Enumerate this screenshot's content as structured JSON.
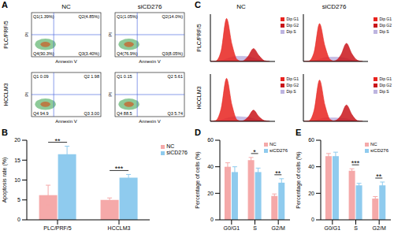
{
  "chart_data": [
    {
      "panel": "A",
      "type": "flow",
      "columns": [
        "NC",
        "siCD276"
      ],
      "rows": [
        "PLC/PRF/5",
        "HCCLM3"
      ],
      "x_label": "Annexin V",
      "y_label": "PI",
      "color": "#2f9e44",
      "quadrants": [
        [
          [
            "Q1(1.39%)",
            "Q2(4.85%)",
            "Q4(90.3%)",
            "Q3(3.40%)"
          ],
          [
            "Q1(1.05%)",
            "Q2(14.0%)",
            "Q4(76.9%)",
            "Q3(8.05%)"
          ]
        ],
        [
          [
            "Q1 0.09",
            "Q2 1.98",
            "Q4 94.9",
            "Q3 3.00"
          ],
          [
            "Q1 0.15",
            "Q2 5.61",
            "Q4 88.5",
            "Q3 5.74"
          ]
        ]
      ]
    },
    {
      "panel": "B",
      "type": "bar",
      "ylabel": "Apoptosis rate (%)",
      "categories": [
        "PLC/PRF/5",
        "HCCLM3"
      ],
      "series": [
        {
          "name": "NC",
          "color": "#f5a9a9",
          "values": [
            6.2,
            5.0
          ],
          "errors": [
            2.5,
            0.5
          ]
        },
        {
          "name": "siCD276",
          "color": "#8fcbee",
          "values": [
            16.5,
            10.6
          ],
          "errors": [
            2.0,
            0.8
          ]
        }
      ],
      "significance": [
        "**",
        "***"
      ],
      "ylim": [
        0,
        20
      ],
      "yticks": [
        0,
        5,
        10,
        15,
        20
      ],
      "legend": "right"
    },
    {
      "panel": "C",
      "type": "area",
      "columns": [
        "NC",
        "siCD276"
      ],
      "rows": [
        "PLC/PRF/5",
        "HCCLM3"
      ],
      "x": [
        0,
        10,
        20,
        30,
        40,
        50,
        60,
        70,
        80,
        90,
        100,
        110
      ],
      "xlim": [
        0,
        120
      ],
      "ylim": [
        0,
        110
      ],
      "tick_labels": false,
      "legend": "right",
      "plots": [
        [
          [
            {
              "name": "Dip G1",
              "color": "#e8231f",
              "values": [
                0,
                1,
                25,
                100,
                40,
                4,
                0,
                0,
                0,
                0,
                0,
                0
              ]
            },
            {
              "name": "Dip G2",
              "color": "#c9151b",
              "values": [
                0,
                0,
                0,
                0,
                0,
                0,
                1,
                12,
                30,
                14,
                2,
                0
              ]
            },
            {
              "name": "Dip S",
              "color": "#bdb4e0",
              "values": [
                0,
                0,
                2,
                6,
                10,
                12,
                12,
                11,
                8,
                4,
                1,
                0
              ]
            }
          ],
          [
            {
              "name": "Dip G1",
              "color": "#e8231f",
              "values": [
                0,
                1,
                22,
                88,
                36,
                4,
                0,
                0,
                0,
                0,
                0,
                0
              ]
            },
            {
              "name": "Dip G2",
              "color": "#c9151b",
              "values": [
                0,
                0,
                0,
                0,
                0,
                0,
                2,
                16,
                42,
                18,
                3,
                0
              ]
            },
            {
              "name": "Dip S",
              "color": "#bdb4e0",
              "values": [
                0,
                0,
                2,
                5,
                9,
                10,
                10,
                9,
                7,
                3,
                1,
                0
              ]
            }
          ]
        ],
        [
          [
            {
              "name": "Dip G1",
              "color": "#e8231f",
              "values": [
                0,
                2,
                30,
                100,
                38,
                3,
                0,
                0,
                0,
                0,
                0,
                0
              ]
            },
            {
              "name": "Dip G2",
              "color": "#c9151b",
              "values": [
                0,
                0,
                0,
                0,
                0,
                0,
                1,
                10,
                26,
                11,
                2,
                0
              ]
            },
            {
              "name": "Dip S",
              "color": "#bdb4e0",
              "values": [
                0,
                0,
                3,
                7,
                10,
                11,
                10,
                9,
                6,
                3,
                1,
                0
              ]
            }
          ],
          [
            {
              "name": "Dip G1",
              "color": "#e8231f",
              "values": [
                0,
                1,
                26,
                96,
                38,
                4,
                0,
                0,
                0,
                0,
                0,
                0
              ]
            },
            {
              "name": "Dip G2",
              "color": "#c9151b",
              "values": [
                0,
                0,
                0,
                0,
                0,
                0,
                2,
                14,
                38,
                16,
                2,
                0
              ]
            },
            {
              "name": "Dip S",
              "color": "#bdb4e0",
              "values": [
                0,
                0,
                2,
                5,
                8,
                8,
                8,
                7,
                6,
                3,
                1,
                0
              ]
            }
          ]
        ]
      ]
    },
    {
      "panel": "D",
      "type": "bar",
      "ylabel": "Percentage of cells (%)",
      "categories": [
        "G0/G1",
        "S",
        "G2/M"
      ],
      "series": [
        {
          "name": "NC",
          "color": "#f5a9a9",
          "values": [
            40,
            45,
            18
          ],
          "errors": [
            3,
            2,
            1.5
          ]
        },
        {
          "name": "siCD276",
          "color": "#8fcbee",
          "values": [
            36,
            36,
            28
          ],
          "errors": [
            4,
            3,
            3
          ]
        }
      ],
      "significance": [
        null,
        "*",
        "**"
      ],
      "ylim": [
        0,
        60
      ],
      "yticks": [
        0,
        20,
        40,
        60
      ],
      "legend": "upper right"
    },
    {
      "panel": "E",
      "type": "bar",
      "ylabel": "Percentage of cells (%)",
      "categories": [
        "G0/G1",
        "S",
        "G2/M"
      ],
      "series": [
        {
          "name": "NC",
          "color": "#f5a9a9",
          "values": [
            48,
            37,
            16
          ],
          "errors": [
            2,
            1.5,
            1.5
          ]
        },
        {
          "name": "siCD276",
          "color": "#8fcbee",
          "values": [
            48,
            26,
            26
          ],
          "errors": [
            3,
            1.5,
            2.5
          ]
        }
      ],
      "significance": [
        null,
        "***",
        "**"
      ],
      "ylim": [
        0,
        60
      ],
      "yticks": [
        0,
        20,
        40,
        60
      ],
      "legend": "upper right"
    }
  ]
}
